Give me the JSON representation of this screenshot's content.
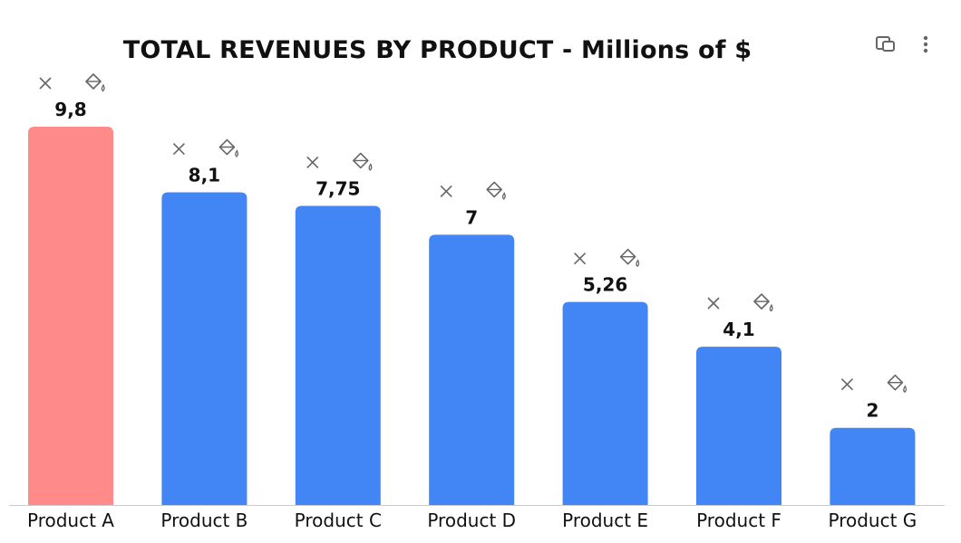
{
  "chart_data": {
    "type": "bar",
    "title": "TOTAL REVENUES BY PRODUCT - Millions of $",
    "xlabel": "",
    "ylabel": "",
    "categories": [
      "Product A",
      "Product B",
      "Product C",
      "Product D",
      "Product E",
      "Product F",
      "Product G"
    ],
    "values": [
      9.8,
      8.1,
      7.75,
      7,
      5.26,
      4.1,
      2
    ],
    "value_labels": [
      "9,8",
      "8,1",
      "7,75",
      "7",
      "5,26",
      "4,1",
      "2"
    ],
    "ylim": [
      0,
      9.8
    ],
    "grid": false,
    "legend": "none",
    "colors": {
      "highlight": "#FF8A8A",
      "default": "#4285F4",
      "axis": "#CCCCCC",
      "icon": "#666666"
    },
    "highlighted_index": 0
  },
  "toolbar": {
    "icons": [
      "copy-chart-icon",
      "more-options-icon"
    ]
  },
  "bar_tools": {
    "icons": [
      "remove-icon",
      "fill-color-icon"
    ]
  }
}
